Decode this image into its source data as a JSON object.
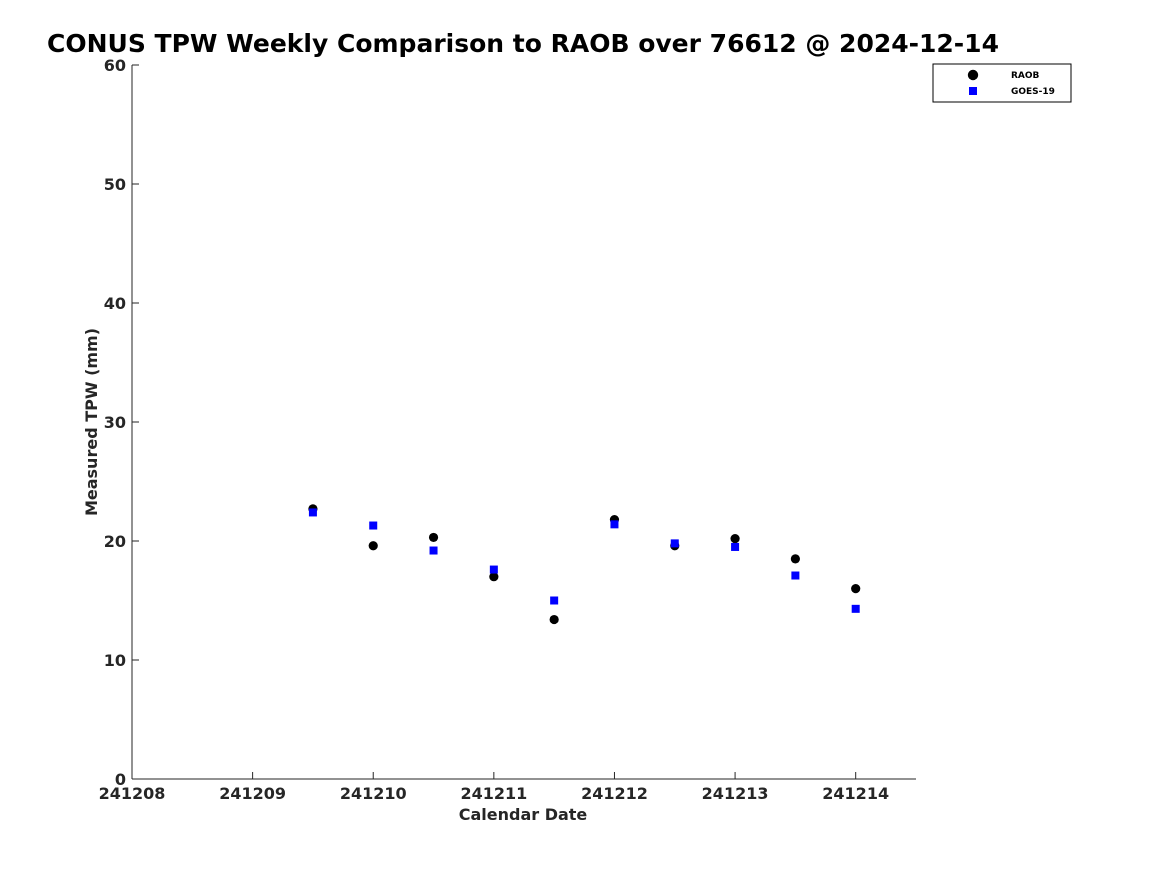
{
  "chart_data": {
    "type": "scatter",
    "title": "CONUS TPW Weekly Comparison to RAOB over 76612 @ 2024-12-14",
    "xlabel": "Calendar Date",
    "ylabel": "Measured TPW (mm)",
    "xlim": [
      "2024-12-08",
      "2024-12-14T12:00"
    ],
    "ylim": [
      0,
      60
    ],
    "x_ticks": [
      {
        "date": "2024-12-08",
        "label": "241208"
      },
      {
        "date": "2024-12-09",
        "label": "241209"
      },
      {
        "date": "2024-12-10",
        "label": "241210"
      },
      {
        "date": "2024-12-11",
        "label": "241211"
      },
      {
        "date": "2024-12-12",
        "label": "241212"
      },
      {
        "date": "2024-12-13",
        "label": "241213"
      },
      {
        "date": "2024-12-14",
        "label": "241214"
      }
    ],
    "y_ticks": [
      0,
      10,
      20,
      30,
      40,
      50,
      60
    ],
    "grid": false,
    "legend_position": "top-right",
    "series": [
      {
        "name": "RAOB",
        "marker": "circle",
        "color": "#000000",
        "points": [
          {
            "x": "2024-12-09T12:00",
            "y": 22.7
          },
          {
            "x": "2024-12-10T00:00",
            "y": 19.6
          },
          {
            "x": "2024-12-10T12:00",
            "y": 20.3
          },
          {
            "x": "2024-12-11T00:00",
            "y": 17.0
          },
          {
            "x": "2024-12-11T12:00",
            "y": 13.4
          },
          {
            "x": "2024-12-12T00:00",
            "y": 21.8
          },
          {
            "x": "2024-12-12T12:00",
            "y": 19.6
          },
          {
            "x": "2024-12-13T00:00",
            "y": 20.2
          },
          {
            "x": "2024-12-13T12:00",
            "y": 18.5
          },
          {
            "x": "2024-12-14T00:00",
            "y": 16.0
          }
        ]
      },
      {
        "name": "GOES-19",
        "marker": "square",
        "color": "#0000ff",
        "points": [
          {
            "x": "2024-12-09T12:00",
            "y": 22.4
          },
          {
            "x": "2024-12-10T00:00",
            "y": 21.3
          },
          {
            "x": "2024-12-10T12:00",
            "y": 19.2
          },
          {
            "x": "2024-12-11T00:00",
            "y": 17.6
          },
          {
            "x": "2024-12-11T12:00",
            "y": 15.0
          },
          {
            "x": "2024-12-12T00:00",
            "y": 21.4
          },
          {
            "x": "2024-12-12T12:00",
            "y": 19.8
          },
          {
            "x": "2024-12-13T00:00",
            "y": 19.5
          },
          {
            "x": "2024-12-13T12:00",
            "y": 17.1
          },
          {
            "x": "2024-12-14T00:00",
            "y": 14.3
          }
        ]
      }
    ]
  }
}
